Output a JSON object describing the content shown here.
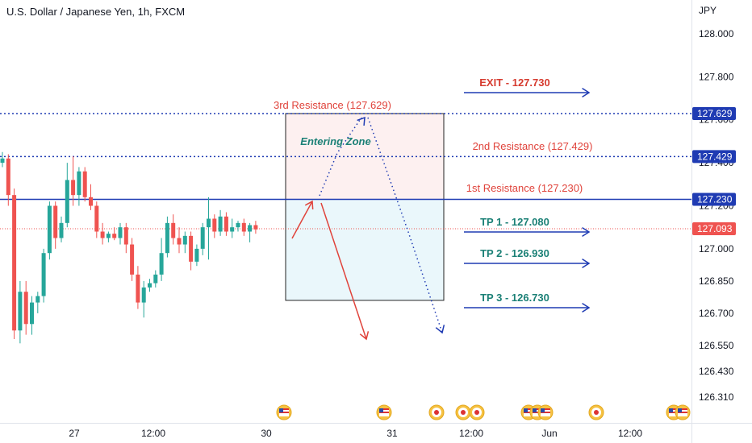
{
  "header": {
    "title": "U.S. Dollar / Japanese Yen, 1h, FXCM",
    "unit": "JPY"
  },
  "colors": {
    "up": "#26a69a",
    "down": "#ef5350",
    "blue": "#1f3bb3",
    "red_text": "#e0433b",
    "teal_text": "#1b8076",
    "dark_red_text": "#d63b2f"
  },
  "chart_data": {
    "type": "candlestick",
    "symbol": "USDJPY",
    "ylim": [
      126.24,
      128.12
    ],
    "y_ticks": [
      "128.000",
      "127.800",
      "127.600",
      "127.400",
      "127.200",
      "127.000",
      "126.850",
      "126.700",
      "126.550",
      "126.430",
      "126.310"
    ],
    "x_ticks": [
      "27",
      "12:00",
      "30",
      "31",
      "12:00",
      "Jun",
      "12:00"
    ],
    "candles": [
      [
        127.4,
        127.45,
        127.38,
        127.42
      ],
      [
        127.42,
        127.44,
        127.2,
        127.25
      ],
      [
        127.25,
        127.28,
        126.58,
        126.62
      ],
      [
        126.62,
        126.85,
        126.56,
        126.8
      ],
      [
        126.8,
        126.85,
        126.6,
        126.65
      ],
      [
        126.65,
        126.78,
        126.6,
        126.75
      ],
      [
        126.75,
        126.8,
        126.7,
        126.78
      ],
      [
        126.78,
        127.0,
        126.75,
        126.98
      ],
      [
        126.98,
        127.22,
        126.95,
        127.2
      ],
      [
        127.2,
        127.22,
        127.0,
        127.05
      ],
      [
        127.05,
        127.15,
        127.03,
        127.12
      ],
      [
        127.12,
        127.4,
        127.1,
        127.32
      ],
      [
        127.32,
        127.43,
        127.2,
        127.25
      ],
      [
        127.25,
        127.38,
        127.2,
        127.36
      ],
      [
        127.36,
        127.38,
        127.22,
        127.24
      ],
      [
        127.24,
        127.3,
        127.18,
        127.2
      ],
      [
        127.2,
        127.22,
        127.05,
        127.08
      ],
      [
        127.08,
        127.12,
        127.02,
        127.05
      ],
      [
        127.05,
        127.08,
        127.03,
        127.07
      ],
      [
        127.07,
        127.1,
        127.04,
        127.05
      ],
      [
        127.05,
        127.12,
        127.02,
        127.1
      ],
      [
        127.1,
        127.12,
        126.98,
        127.02
      ],
      [
        127.02,
        127.05,
        126.85,
        126.88
      ],
      [
        126.88,
        126.92,
        126.72,
        126.75
      ],
      [
        126.75,
        126.85,
        126.68,
        126.82
      ],
      [
        126.82,
        126.86,
        126.8,
        126.84
      ],
      [
        126.84,
        126.9,
        126.82,
        126.88
      ],
      [
        126.88,
        127.05,
        126.85,
        126.98
      ],
      [
        126.98,
        127.15,
        126.96,
        127.12
      ],
      [
        127.12,
        127.16,
        127.02,
        127.05
      ],
      [
        127.05,
        127.1,
        126.98,
        127.02
      ],
      [
        127.02,
        127.08,
        126.98,
        127.06
      ],
      [
        127.06,
        127.08,
        126.9,
        126.94
      ],
      [
        126.94,
        127.02,
        126.92,
        127.0
      ],
      [
        127.0,
        127.12,
        126.97,
        127.1
      ],
      [
        127.1,
        127.24,
        126.95,
        127.14
      ],
      [
        127.14,
        127.16,
        127.05,
        127.08
      ],
      [
        127.08,
        127.18,
        127.06,
        127.15
      ],
      [
        127.15,
        127.17,
        127.06,
        127.08
      ],
      [
        127.08,
        127.14,
        127.05,
        127.1
      ],
      [
        127.1,
        127.13,
        127.08,
        127.12
      ],
      [
        127.12,
        127.14,
        127.06,
        127.08
      ],
      [
        127.08,
        127.12,
        127.03,
        127.11
      ],
      [
        127.11,
        127.13,
        127.07,
        127.09
      ]
    ],
    "lines": [
      {
        "label": "127.629",
        "price": 127.629,
        "style": "dotted"
      },
      {
        "label": "127.429",
        "price": 127.429,
        "style": "dotted"
      },
      {
        "label": "127.230",
        "price": 127.23,
        "style": "solid"
      },
      {
        "label": "127.093",
        "price": 127.093,
        "style": "dashed"
      }
    ],
    "annotations": {
      "third_resistance": "3rd Resistance (127.629)",
      "second_resistance": "2nd Resistance (127.429)",
      "first_resistance": "1st Resistance (127.230)",
      "entering_zone": "Entering Zone",
      "exit": "EXIT - 127.730",
      "tp1": "TP 1 - 127.080",
      "tp2": "TP 2 - 126.930",
      "tp3": "TP 3 - 126.730"
    },
    "zone": {
      "top": 127.629,
      "mid": 127.23,
      "bottom": 126.76
    }
  }
}
